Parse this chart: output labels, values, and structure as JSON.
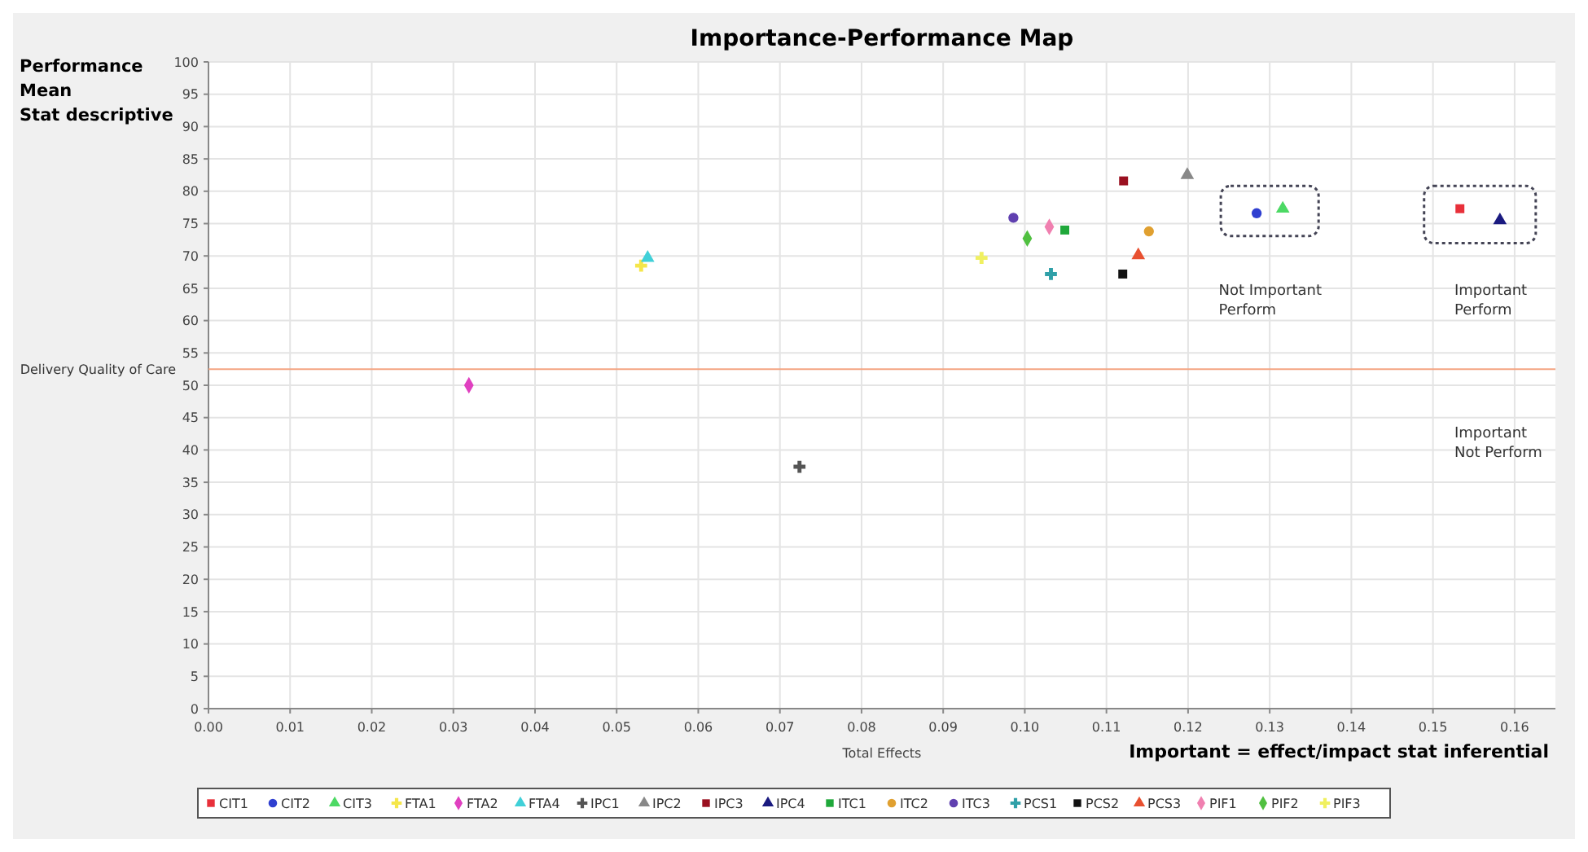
{
  "chart_data": {
    "type": "scatter",
    "title": "Importance-Performance Map",
    "xlabel": "Total Effects",
    "ylabel": "Performance\nMean\nStat descriptive",
    "xlim": [
      0,
      0.165
    ],
    "ylim": [
      0,
      100
    ],
    "xticks": [
      {
        "value": 0,
        "label": "0.00"
      },
      {
        "value": 0.01,
        "label": "0.01"
      },
      {
        "value": 0.02,
        "label": "0.02"
      },
      {
        "value": 0.03,
        "label": "0.03"
      },
      {
        "value": 0.04,
        "label": "0.04"
      },
      {
        "value": 0.05,
        "label": "0.05"
      },
      {
        "value": 0.06,
        "label": "0.06"
      },
      {
        "value": 0.07,
        "label": "0.07"
      },
      {
        "value": 0.08,
        "label": "0.08"
      },
      {
        "value": 0.09,
        "label": "0.09"
      },
      {
        "value": 0.1,
        "label": "0.10"
      },
      {
        "value": 0.11,
        "label": "0.11"
      },
      {
        "value": 0.12,
        "label": "0.12"
      },
      {
        "value": 0.13,
        "label": "0.13"
      },
      {
        "value": 0.14,
        "label": "0.14"
      },
      {
        "value": 0.15,
        "label": "0.15"
      },
      {
        "value": 0.16,
        "label": "0.16"
      }
    ],
    "yticks": [
      0,
      5,
      10,
      15,
      20,
      25,
      30,
      35,
      40,
      45,
      50,
      55,
      60,
      65,
      70,
      75,
      80,
      85,
      90,
      95,
      100
    ],
    "grid": true,
    "legend": "bottom",
    "ref_lines": [
      {
        "axis": "y",
        "value": 52.5,
        "label": "Delivery Quality of Care",
        "color": "#f4a582"
      }
    ],
    "annotations": [
      "Not Important\nPerform",
      "Important\nPerform",
      "Important\nNot Perform",
      "Important = effect/impact  stat inferential"
    ],
    "series": [
      {
        "name": "CIT1",
        "color": "#e8303a",
        "marker": "square",
        "x": [
          0.1533
        ],
        "values": [
          77.3
        ]
      },
      {
        "name": "CIT2",
        "color": "#2f3fd0",
        "marker": "circle",
        "x": [
          0.1284
        ],
        "values": [
          76.6
        ]
      },
      {
        "name": "CIT3",
        "color": "#4cd964",
        "marker": "triangle",
        "x": [
          0.1316
        ],
        "values": [
          77.3
        ]
      },
      {
        "name": "FTA1",
        "color": "#f5e64a",
        "marker": "cross",
        "x": [
          0.053
        ],
        "values": [
          68.5
        ]
      },
      {
        "name": "FTA2",
        "color": "#e040c0",
        "marker": "diamond",
        "x": [
          0.0319
        ],
        "values": [
          50
        ]
      },
      {
        "name": "FTA4",
        "color": "#40d0d8",
        "marker": "triangle",
        "x": [
          0.0538
        ],
        "values": [
          69.7
        ]
      },
      {
        "name": "IPC1",
        "color": "#555555",
        "marker": "cross",
        "x": [
          0.0724
        ],
        "values": [
          37.4
        ]
      },
      {
        "name": "IPC2",
        "color": "#888888",
        "marker": "triangle",
        "x": [
          0.1199
        ],
        "values": [
          82.5
        ]
      },
      {
        "name": "IPC3",
        "color": "#9a1020",
        "marker": "square",
        "x": [
          0.1121
        ],
        "values": [
          81.6
        ]
      },
      {
        "name": "IPC4",
        "color": "#1a1a80",
        "marker": "triangle",
        "x": [
          0.1582
        ],
        "values": [
          75.5
        ]
      },
      {
        "name": "ITC1",
        "color": "#1fa83a",
        "marker": "square",
        "x": [
          0.1049
        ],
        "values": [
          74
        ]
      },
      {
        "name": "ITC2",
        "color": "#e0a030",
        "marker": "circle",
        "x": [
          0.1152
        ],
        "values": [
          73.8
        ]
      },
      {
        "name": "ITC3",
        "color": "#6040b0",
        "marker": "circle",
        "x": [
          0.0986
        ],
        "values": [
          75.9
        ]
      },
      {
        "name": "PCS1",
        "color": "#30a0a8",
        "marker": "cross",
        "x": [
          0.1032
        ],
        "values": [
          67.2
        ]
      },
      {
        "name": "PCS2",
        "color": "#111111",
        "marker": "square",
        "x": [
          0.112
        ],
        "values": [
          67.2
        ]
      },
      {
        "name": "PCS3",
        "color": "#e85030",
        "marker": "triangle",
        "x": [
          0.1139
        ],
        "values": [
          70.1
        ]
      },
      {
        "name": "PIF1",
        "color": "#f080b0",
        "marker": "diamond",
        "x": [
          0.103
        ],
        "values": [
          74.5
        ]
      },
      {
        "name": "PIF2",
        "color": "#50c040",
        "marker": "diamond",
        "x": [
          0.1003
        ],
        "values": [
          72.7
        ]
      },
      {
        "name": "PIF3",
        "color": "#f0f060",
        "marker": "cross",
        "x": [
          0.0947
        ],
        "values": [
          69.7
        ]
      }
    ]
  }
}
